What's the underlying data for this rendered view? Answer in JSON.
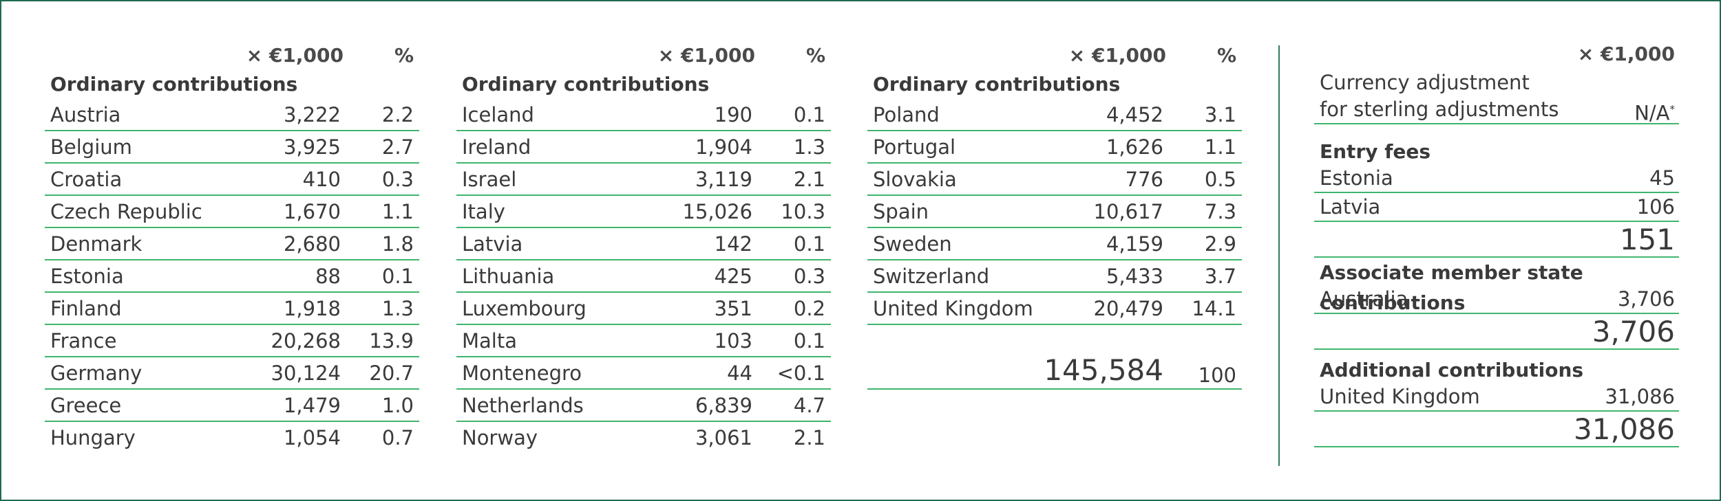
{
  "headers": {
    "unit": "× €1,000",
    "pct": "%"
  },
  "ordinary_title": "Ordinary contributions",
  "columns": [
    {
      "rows": [
        {
          "name": "Austria",
          "value": "3,222",
          "pct": "2.2"
        },
        {
          "name": "Belgium",
          "value": "3,925",
          "pct": "2.7"
        },
        {
          "name": "Croatia",
          "value": "410",
          "pct": "0.3"
        },
        {
          "name": "Czech Republic",
          "value": "1,670",
          "pct": "1.1"
        },
        {
          "name": "Denmark",
          "value": "2,680",
          "pct": "1.8"
        },
        {
          "name": "Estonia",
          "value": "88",
          "pct": "0.1"
        },
        {
          "name": "Finland",
          "value": "1,918",
          "pct": "1.3"
        },
        {
          "name": "France",
          "value": "20,268",
          "pct": "13.9"
        },
        {
          "name": "Germany",
          "value": "30,124",
          "pct": "20.7"
        },
        {
          "name": "Greece",
          "value": "1,479",
          "pct": "1.0"
        },
        {
          "name": "Hungary",
          "value": "1,054",
          "pct": "0.7"
        }
      ]
    },
    {
      "rows": [
        {
          "name": "Iceland",
          "value": "190",
          "pct": "0.1"
        },
        {
          "name": "Ireland",
          "value": "1,904",
          "pct": "1.3"
        },
        {
          "name": "Israel",
          "value": "3,119",
          "pct": "2.1"
        },
        {
          "name": "Italy",
          "value": "15,026",
          "pct": "10.3"
        },
        {
          "name": "Latvia",
          "value": "142",
          "pct": "0.1"
        },
        {
          "name": "Lithuania",
          "value": "425",
          "pct": "0.3"
        },
        {
          "name": "Luxembourg",
          "value": "351",
          "pct": "0.2"
        },
        {
          "name": "Malta",
          "value": "103",
          "pct": "0.1"
        },
        {
          "name": "Montenegro",
          "value": "44",
          "pct": "<0.1"
        },
        {
          "name": "Netherlands",
          "value": "6,839",
          "pct": "4.7"
        },
        {
          "name": "Norway",
          "value": "3,061",
          "pct": "2.1"
        }
      ]
    },
    {
      "rows": [
        {
          "name": "Poland",
          "value": "4,452",
          "pct": "3.1"
        },
        {
          "name": "Portugal",
          "value": "1,626",
          "pct": "1.1"
        },
        {
          "name": "Slovakia",
          "value": "776",
          "pct": "0.5"
        },
        {
          "name": "Spain",
          "value": "10,617",
          "pct": "7.3"
        },
        {
          "name": "Sweden",
          "value": "4,159",
          "pct": "2.9"
        },
        {
          "name": "Switzerland",
          "value": "5,433",
          "pct": "3.7"
        },
        {
          "name": "United Kingdom",
          "value": "20,479",
          "pct": "14.1"
        }
      ],
      "total": {
        "value": "145,584",
        "pct": "100"
      }
    }
  ],
  "right": {
    "unit": "× €1,000",
    "currency_line1": "Currency adjustment",
    "currency_line2": "for sterling adjustments",
    "currency_value": "N/A",
    "currency_note": "*",
    "entry_title": "Entry fees",
    "entry_rows": [
      {
        "name": "Estonia",
        "value": "45"
      },
      {
        "name": "Latvia",
        "value": "106"
      }
    ],
    "entry_total": "151",
    "associate_title": "Associate member state contributions",
    "associate_rows": [
      {
        "name": "Australia",
        "value": "3,706"
      }
    ],
    "associate_total": "3,706",
    "additional_title": "Additional contributions",
    "additional_rows": [
      {
        "name": "United Kingdom",
        "value": "31,086"
      }
    ],
    "additional_total": "31,086"
  }
}
